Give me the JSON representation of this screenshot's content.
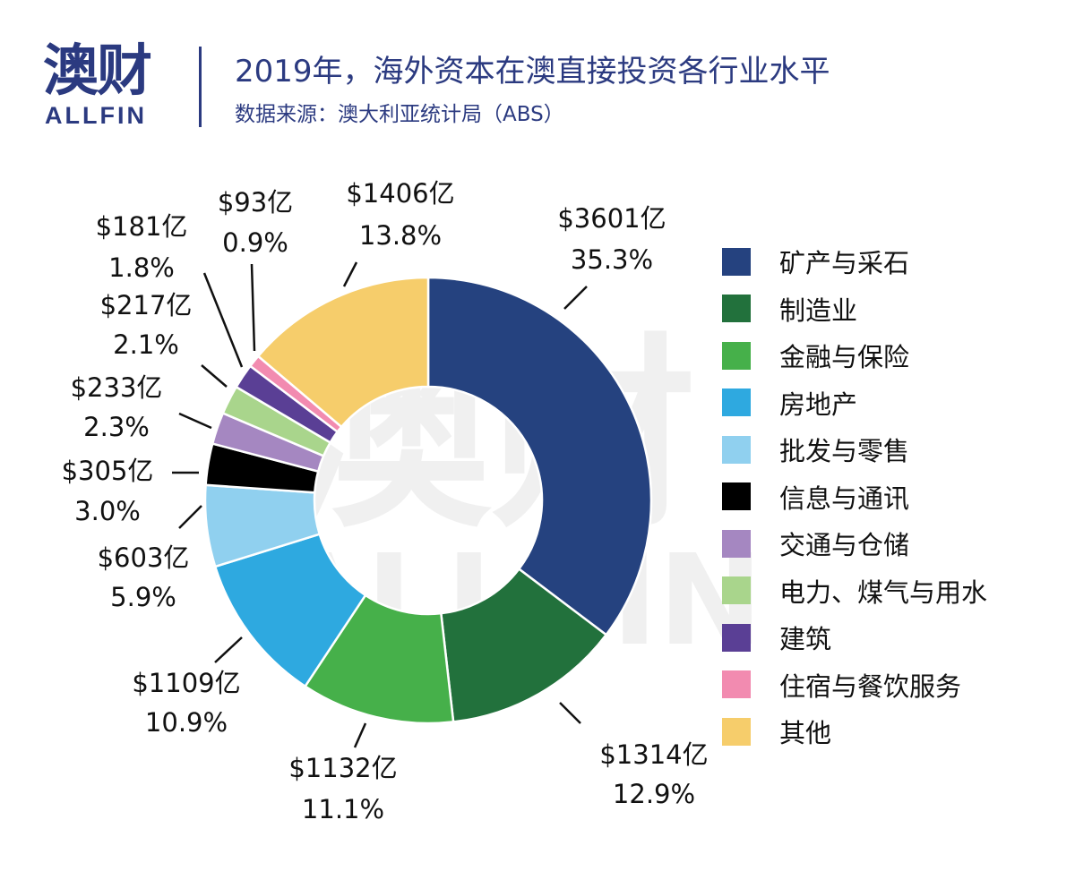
{
  "header": {
    "logo_cn": "澳财",
    "logo_en": "ALLFIN",
    "title": "2019年，海外资本在澳直接投资各行业水平",
    "subtitle": "数据来源：澳大利亚统计局（ABS）"
  },
  "watermark": {
    "cn": "澳财",
    "en": "ALLFIN"
  },
  "chart_data": {
    "type": "pie",
    "donut": true,
    "title": "2019年，海外资本在澳直接投资各行业水平",
    "start": "12 o'clock, clockwise",
    "legend_position": "right",
    "slices": [
      {
        "name": "矿产与采石",
        "amount": "$3601亿",
        "percent": 35.3,
        "percent_label": "35.3%",
        "color": "#25427f"
      },
      {
        "name": "制造业",
        "amount": "$1314亿",
        "percent": 12.9,
        "percent_label": "12.9%",
        "color": "#22713c"
      },
      {
        "name": "金融与保险",
        "amount": "$1132亿",
        "percent": 11.1,
        "percent_label": "11.1%",
        "color": "#46b04a"
      },
      {
        "name": "房地产",
        "amount": "$1109亿",
        "percent": 10.9,
        "percent_label": "10.9%",
        "color": "#2ea9e0"
      },
      {
        "name": "批发与零售",
        "amount": "$603亿",
        "percent": 5.9,
        "percent_label": "5.9%",
        "color": "#90d0ef"
      },
      {
        "name": "信息与通讯",
        "amount": "$305亿",
        "percent": 3.0,
        "percent_label": "3.0%",
        "color": "#000000"
      },
      {
        "name": "交通与仓储",
        "amount": "$233亿",
        "percent": 2.3,
        "percent_label": "2.3%",
        "color": "#a587c1"
      },
      {
        "name": "电力、煤气与用水",
        "amount": "$217亿",
        "percent": 2.1,
        "percent_label": "2.1%",
        "color": "#a9d58c"
      },
      {
        "name": "建筑",
        "amount": "$181亿",
        "percent": 1.8,
        "percent_label": "1.8%",
        "color": "#5a3f95"
      },
      {
        "name": "住宿与餐饮服务",
        "amount": "$93亿",
        "percent": 0.9,
        "percent_label": "0.9%",
        "color": "#f28bb0"
      },
      {
        "name": "其他",
        "amount": "$1406亿",
        "percent": 13.8,
        "percent_label": "13.8%",
        "color": "#f6cd6b"
      }
    ]
  }
}
